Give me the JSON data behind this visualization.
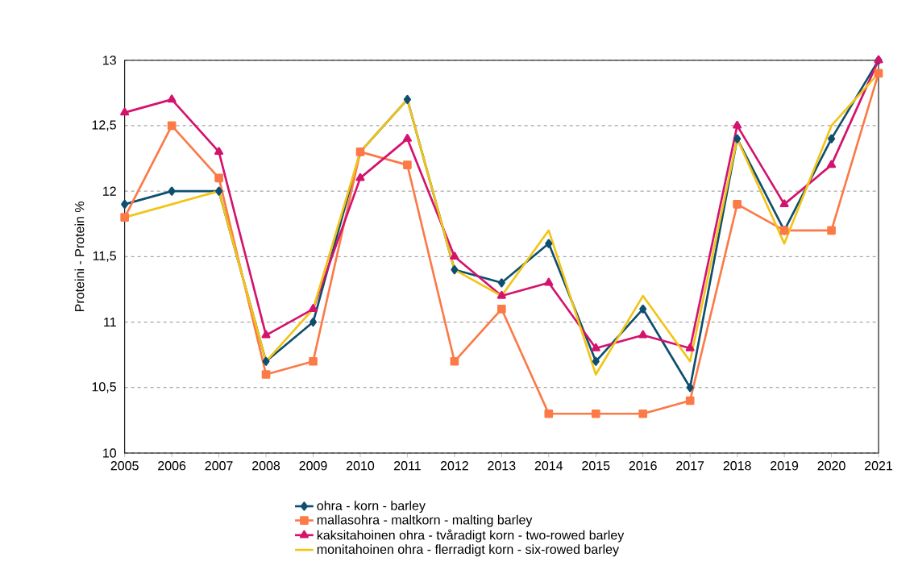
{
  "chart_data": {
    "type": "line",
    "ylabel": "Proteini - Protein %",
    "categories": [
      "2005",
      "2006",
      "2007",
      "2008",
      "2009",
      "2010",
      "2011",
      "2012",
      "2013",
      "2014",
      "2015",
      "2016",
      "2017",
      "2018",
      "2019",
      "2020",
      "2021"
    ],
    "ylim": [
      10,
      13
    ],
    "yticks": [
      10,
      {
        "value": 10.5,
        "label": "10,5"
      },
      11,
      {
        "value": 11.5,
        "label": "11,5"
      },
      12,
      {
        "value": 12.5,
        "label": "12,5"
      },
      13
    ],
    "grid": "y",
    "legend": "bottom",
    "series": [
      {
        "name": "ohra - korn - barley",
        "color": "#0f4f6e",
        "marker": "diamond",
        "values": [
          11.9,
          12.0,
          12.0,
          10.7,
          11.0,
          12.3,
          12.7,
          11.4,
          11.3,
          11.6,
          10.7,
          11.1,
          10.5,
          12.4,
          11.7,
          12.4,
          13.0
        ]
      },
      {
        "name": "mallasohra - maltkorn - malting barley",
        "color": "#fb7a47",
        "marker": "square",
        "values": [
          11.8,
          12.5,
          12.1,
          10.6,
          10.7,
          12.3,
          12.2,
          10.7,
          11.1,
          10.3,
          10.3,
          10.3,
          10.4,
          11.9,
          11.7,
          11.7,
          12.9
        ]
      },
      {
        "name": "kaksitahoinen ohra - tvåradigt korn - two-rowed barley",
        "color": "#d3136e",
        "marker": "triangle",
        "values": [
          12.6,
          12.7,
          12.3,
          10.9,
          11.1,
          12.1,
          12.4,
          11.5,
          11.2,
          11.3,
          10.8,
          10.9,
          10.8,
          12.5,
          11.9,
          12.2,
          13.0
        ]
      },
      {
        "name": "monitahoinen ohra - flerradigt korn - six-rowed barley",
        "color": "#f3c417",
        "marker": "none",
        "values": [
          11.8,
          11.9,
          12.0,
          10.7,
          11.1,
          12.3,
          12.7,
          11.4,
          11.2,
          11.7,
          10.6,
          11.2,
          10.7,
          12.4,
          11.6,
          12.5,
          12.9
        ]
      }
    ]
  }
}
